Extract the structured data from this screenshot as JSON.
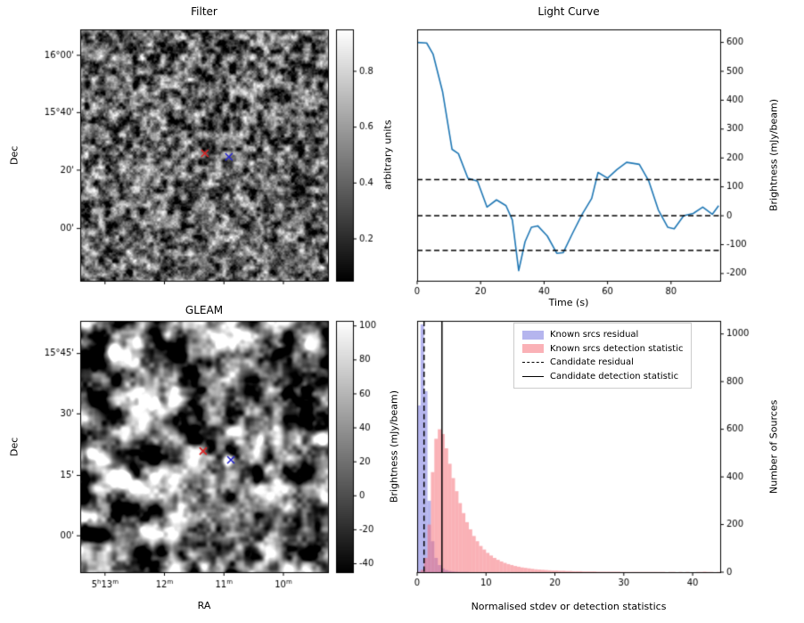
{
  "figure": {
    "background": "#ffffff"
  },
  "chart_data": [
    {
      "id": "filter",
      "type": "heatmap",
      "title": "Filter",
      "ylabel": "Dec",
      "dec_ticks": [
        {
          "label": "16°00'",
          "f": 0.103
        },
        {
          "label": "15°40'",
          "f": 0.331
        },
        {
          "label": "20'",
          "f": 0.56
        },
        {
          "label": "00'",
          "f": 0.792
        }
      ],
      "ra_ticks": [
        {
          "f": 0.1
        },
        {
          "f": 0.34
        },
        {
          "f": 0.58
        },
        {
          "f": 0.82
        }
      ],
      "markers": [
        {
          "symbol": "x",
          "color": "#dd2222",
          "fx": 0.503,
          "fy": 0.493
        },
        {
          "symbol": "x",
          "color": "#2525cc",
          "fx": 0.6,
          "fy": 0.507
        }
      ],
      "colorbar": {
        "label": "arbitrary units",
        "min": 0.05,
        "max": 0.95,
        "ticks": [
          0.2,
          0.4,
          0.6,
          0.8
        ]
      }
    },
    {
      "id": "light_curve",
      "type": "line",
      "title": "Light Curve",
      "xlabel": "Time (s)",
      "ylabel": "Brightness (mJy/beam)",
      "line_color": "#1f77b4",
      "xlim": [
        0,
        95.5
      ],
      "ylim": [
        -225,
        645
      ],
      "x_ticks": [
        0,
        20,
        40,
        60,
        80
      ],
      "y_ticks": [
        -200,
        -100,
        0,
        100,
        200,
        300,
        400,
        500,
        600
      ],
      "threshold_lines": [
        125,
        0,
        -120
      ],
      "x": [
        0,
        3,
        5,
        8,
        11,
        13,
        16,
        19,
        22,
        25,
        28,
        30,
        32,
        34,
        36,
        38,
        41,
        44,
        46,
        49,
        52,
        55,
        57,
        60,
        63,
        66,
        70,
        73,
        76,
        79,
        81,
        84,
        87,
        90,
        93,
        95
      ],
      "y": [
        600,
        598,
        560,
        430,
        230,
        215,
        130,
        120,
        30,
        55,
        35,
        -15,
        -190,
        -90,
        -40,
        -35,
        -70,
        -130,
        -128,
        -60,
        5,
        60,
        150,
        130,
        160,
        185,
        178,
        120,
        20,
        -40,
        -45,
        0,
        8,
        30,
        5,
        35
      ]
    },
    {
      "id": "gleam",
      "type": "heatmap",
      "title": "GLEAM",
      "xlabel": "RA",
      "ylabel": "Dec",
      "dec_ticks": [
        {
          "label": "15°45'",
          "f": 0.13
        },
        {
          "label": "30'",
          "f": 0.37
        },
        {
          "label": "15'",
          "f": 0.615
        },
        {
          "label": "00'",
          "f": 0.855
        }
      ],
      "ra_ticks": [
        {
          "f": 0.1,
          "parts": [
            {
              "t": "5",
              "s": "h"
            },
            {
              "t": "13",
              "s": "m"
            }
          ]
        },
        {
          "f": 0.34,
          "parts": [
            {
              "t": "12",
              "s": "m"
            }
          ]
        },
        {
          "f": 0.58,
          "parts": [
            {
              "t": "11",
              "s": "m"
            }
          ]
        },
        {
          "f": 0.82,
          "parts": [
            {
              "t": "10",
              "s": "m"
            }
          ]
        }
      ],
      "markers": [
        {
          "symbol": "x",
          "color": "#dd2222",
          "fx": 0.496,
          "fy": 0.518
        },
        {
          "symbol": "x",
          "color": "#2525cc",
          "fx": 0.608,
          "fy": 0.553
        }
      ],
      "bright_sources": [
        [
          0.355,
          0.055,
          1.2,
          5
        ],
        [
          0.13,
          0.125,
          1.1,
          5
        ],
        [
          0.75,
          0.17,
          0.8,
          4
        ],
        [
          0.592,
          0.553,
          1.3,
          5
        ],
        [
          0.165,
          0.625,
          1.3,
          6
        ],
        [
          0.225,
          0.655,
          1.2,
          6
        ],
        [
          0.04,
          0.52,
          0.7,
          4
        ],
        [
          0.92,
          0.1,
          0.6,
          4
        ],
        [
          0.5,
          0.98,
          0.8,
          4
        ],
        [
          0.97,
          0.47,
          0.7,
          4
        ],
        [
          0.64,
          0.9,
          0.6,
          4
        ],
        [
          0.3,
          0.33,
          0.7,
          4
        ]
      ],
      "colorbar": {
        "label": "Brightness (mJy/beam)",
        "min": -45,
        "max": 103,
        "ticks": [
          -40,
          -20,
          0,
          20,
          40,
          60,
          80,
          100
        ]
      }
    },
    {
      "id": "hist",
      "type": "bar",
      "xlabel": "Normalised stdev or detection statistics",
      "ylabel": "Number of Sources",
      "xlim": [
        0,
        44
      ],
      "ylim": [
        0,
        1055
      ],
      "x_ticks": [
        0,
        10,
        20,
        30,
        40
      ],
      "y_ticks": [
        0,
        200,
        400,
        600,
        800,
        1000
      ],
      "bin_width": 0.5,
      "series": [
        {
          "name": "Known srcs residual",
          "color": "rgba(108,108,222,0.5)",
          "bins": [
            700,
            1040,
            760,
            300,
            130,
            60,
            30,
            16,
            9,
            5,
            3,
            2,
            1,
            1,
            1
          ]
        },
        {
          "name": "Known srcs detection statistic",
          "color": "rgba(246,100,110,0.5)",
          "bins": [
            2,
            10,
            60,
            200,
            420,
            560,
            600,
            580,
            520,
            455,
            395,
            340,
            290,
            248,
            210,
            180,
            152,
            130,
            110,
            95,
            81,
            70,
            60,
            52,
            45,
            39,
            34,
            30,
            26,
            23,
            20,
            18,
            16,
            14,
            12,
            11,
            10,
            9,
            8,
            7,
            7,
            6,
            6,
            5,
            5,
            4,
            4,
            4,
            3,
            3,
            3,
            3,
            2,
            2,
            2,
            2,
            2,
            2,
            2,
            1,
            1,
            1,
            1,
            1,
            1,
            1,
            1,
            1,
            1,
            1,
            1,
            1,
            0,
            1,
            1,
            0,
            1,
            0,
            1,
            0,
            0,
            1,
            1,
            2,
            1,
            1,
            0,
            1
          ]
        }
      ],
      "vlines": [
        {
          "label": "Candidate residual",
          "x": 1.0,
          "style": "dashed"
        },
        {
          "label": "Candidate detection statistic",
          "x": 3.6,
          "style": "solid"
        }
      ],
      "legend": [
        {
          "label": "Known srcs residual"
        },
        {
          "label": "Known srcs detection statistic"
        },
        {
          "label": "Candidate residual"
        },
        {
          "label": "Candidate detection statistic"
        }
      ]
    }
  ]
}
